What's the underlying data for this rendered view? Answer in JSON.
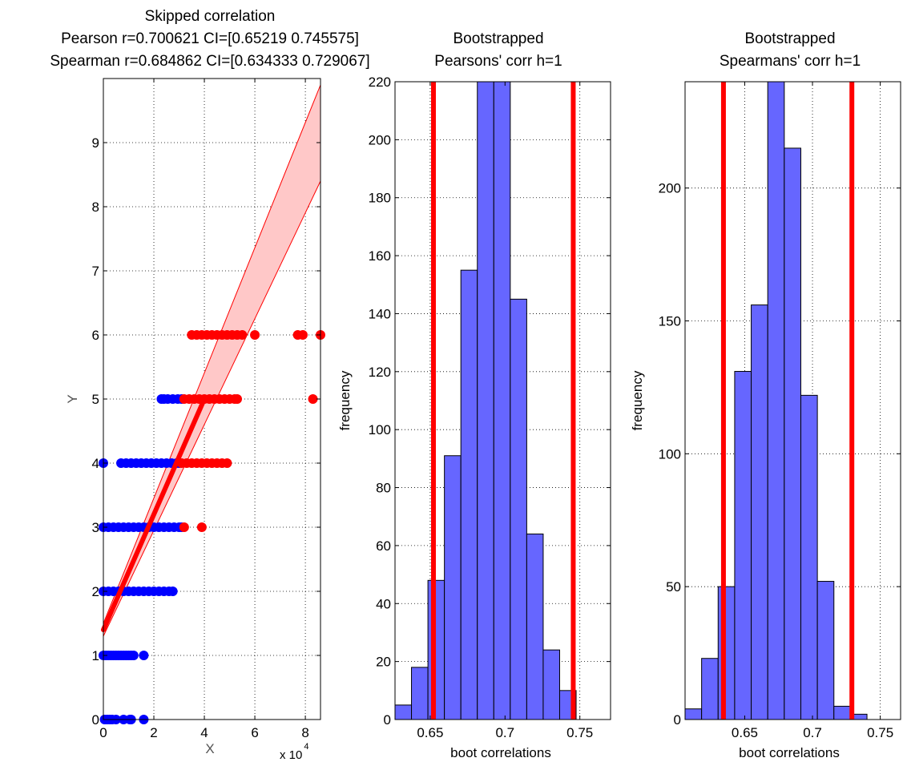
{
  "colors": {
    "outlier": "#ff0000",
    "inlier": "#0000ff",
    "fit_line": "#ff0000",
    "ci_band": "#ffc8c8",
    "histogram_bar": "#6666ff",
    "ci_line": "#ff0000",
    "grid": "#000000"
  },
  "chart_data": [
    {
      "id": "scatter",
      "type": "scatter",
      "title": [
        "Skipped correlation",
        "Pearson r=0.700621 CI=[0.65219 0.745575]",
        "Spearman r=0.684862 CI=[0.634333 0.729067]"
      ],
      "xlabel": "X",
      "ylabel": "Y",
      "x_multiplier_base": "x 10",
      "x_multiplier_exp": "4",
      "xlim": [
        0,
        8.6
      ],
      "ylim": [
        0,
        10
      ],
      "xticks": [
        0,
        2,
        4,
        6,
        8
      ],
      "xtick_labels": [
        "0",
        "2",
        "4",
        "6",
        "8"
      ],
      "yticks": [
        0,
        1,
        2,
        3,
        4,
        5,
        6,
        7,
        8,
        9
      ],
      "ytick_labels": [
        "0",
        "1",
        "2",
        "3",
        "4",
        "5",
        "6",
        "7",
        "8",
        "9"
      ],
      "grid": true,
      "inliers": [
        {
          "y": 0,
          "x": [
            0.05,
            0.15,
            0.25,
            0.35,
            0.5,
            0.8,
            1.05,
            1.1,
            1.6
          ]
        },
        {
          "y": 1,
          "x": [
            0.0,
            0.1,
            0.2,
            0.3,
            0.4,
            0.5,
            0.6,
            0.7,
            0.8,
            0.9,
            1.0,
            1.1,
            1.2,
            1.6
          ]
        },
        {
          "y": 2,
          "x": [
            0.0,
            0.2,
            0.4,
            0.6,
            0.8,
            1.0,
            1.2,
            1.4,
            1.6,
            1.8,
            2.0,
            2.2,
            2.4,
            2.6,
            2.75
          ]
        },
        {
          "y": 3,
          "x": [
            0.0,
            0.2,
            0.4,
            0.6,
            0.8,
            1.0,
            1.2,
            1.4,
            1.6,
            1.8,
            2.0,
            2.2,
            2.4,
            2.6,
            2.8,
            3.0,
            3.1
          ]
        },
        {
          "y": 4,
          "x": [
            0.0,
            0.7,
            0.9,
            1.1,
            1.3,
            1.5,
            1.7,
            1.9,
            2.1,
            2.3,
            2.5,
            2.7,
            2.9,
            3.0
          ]
        },
        {
          "y": 5,
          "x": [
            2.3,
            2.4,
            2.55,
            2.75,
            2.95,
            3.1
          ]
        }
      ],
      "outliers": [
        {
          "y": 3,
          "x": [
            3.2,
            3.9
          ]
        },
        {
          "y": 4,
          "x": [
            3.1,
            3.3,
            3.5,
            3.7,
            3.9,
            4.1,
            4.3,
            4.5,
            4.7,
            4.9
          ]
        },
        {
          "y": 5,
          "x": [
            3.2,
            3.4,
            3.6,
            3.8,
            4.0,
            4.2,
            4.4,
            4.6,
            4.8,
            5.0,
            5.2,
            5.3,
            8.3
          ]
        },
        {
          "y": 6,
          "x": [
            3.5,
            3.7,
            3.9,
            4.1,
            4.3,
            4.5,
            4.7,
            4.9,
            5.1,
            5.3,
            5.5,
            6.0,
            7.7,
            7.9,
            8.6
          ]
        }
      ],
      "fit_line": {
        "x0": 0,
        "y0": 1.4,
        "x1": 4.0,
        "y1": 5.0
      },
      "ci_band": {
        "lower": [
          [
            0,
            1.3
          ],
          [
            8.6,
            8.4
          ]
        ],
        "upper": [
          [
            0,
            1.5
          ],
          [
            8.6,
            9.9
          ]
        ]
      }
    },
    {
      "id": "hist_pearson",
      "type": "bar",
      "title": [
        "Bootstrapped",
        "Pearsons' corr h=1"
      ],
      "xlabel": "boot correlations",
      "ylabel": "frequency",
      "xlim": [
        0.6265,
        0.7705
      ],
      "ylim": [
        0,
        220
      ],
      "xticks": [
        0.65,
        0.7,
        0.75
      ],
      "xtick_labels": [
        "0.65",
        "0.7",
        "0.75"
      ],
      "yticks": [
        0,
        20,
        40,
        60,
        80,
        100,
        120,
        140,
        160,
        180,
        200,
        220
      ],
      "ytick_labels": [
        "0",
        "20",
        "40",
        "60",
        "80",
        "100",
        "120",
        "140",
        "160",
        "180",
        "200",
        "220"
      ],
      "grid": true,
      "bin_edges": [
        0.6265,
        0.6375,
        0.6485,
        0.6595,
        0.6705,
        0.6815,
        0.6925,
        0.7035,
        0.7145,
        0.7255,
        0.7365,
        0.7475,
        0.7585,
        0.7705
      ],
      "values": [
        5,
        18,
        48,
        91,
        155,
        232,
        232,
        145,
        64,
        24,
        10,
        0,
        0
      ],
      "ci_lines": [
        0.65219,
        0.745575
      ]
    },
    {
      "id": "hist_spearman",
      "type": "bar",
      "title": [
        "Bootstrapped",
        "Spearmans' corr h=1"
      ],
      "xlabel": "boot correlations",
      "ylabel": "frequency",
      "xlim": [
        0.606,
        0.765
      ],
      "ylim": [
        0,
        240
      ],
      "xticks": [
        0.65,
        0.7,
        0.75
      ],
      "xtick_labels": [
        "0.65",
        "0.7",
        "0.75"
      ],
      "yticks": [
        0,
        50,
        100,
        150,
        200
      ],
      "ytick_labels": [
        "0",
        "50",
        "100",
        "150",
        "200"
      ],
      "grid": true,
      "bin_edges": [
        0.606,
        0.6182,
        0.6304,
        0.6426,
        0.6548,
        0.667,
        0.6792,
        0.6914,
        0.7036,
        0.7158,
        0.728,
        0.7402,
        0.7524,
        0.765
      ],
      "values": [
        4,
        23,
        50,
        131,
        156,
        245,
        215,
        122,
        52,
        5,
        2,
        0,
        0
      ],
      "ci_lines": [
        0.634333,
        0.729067
      ]
    }
  ]
}
